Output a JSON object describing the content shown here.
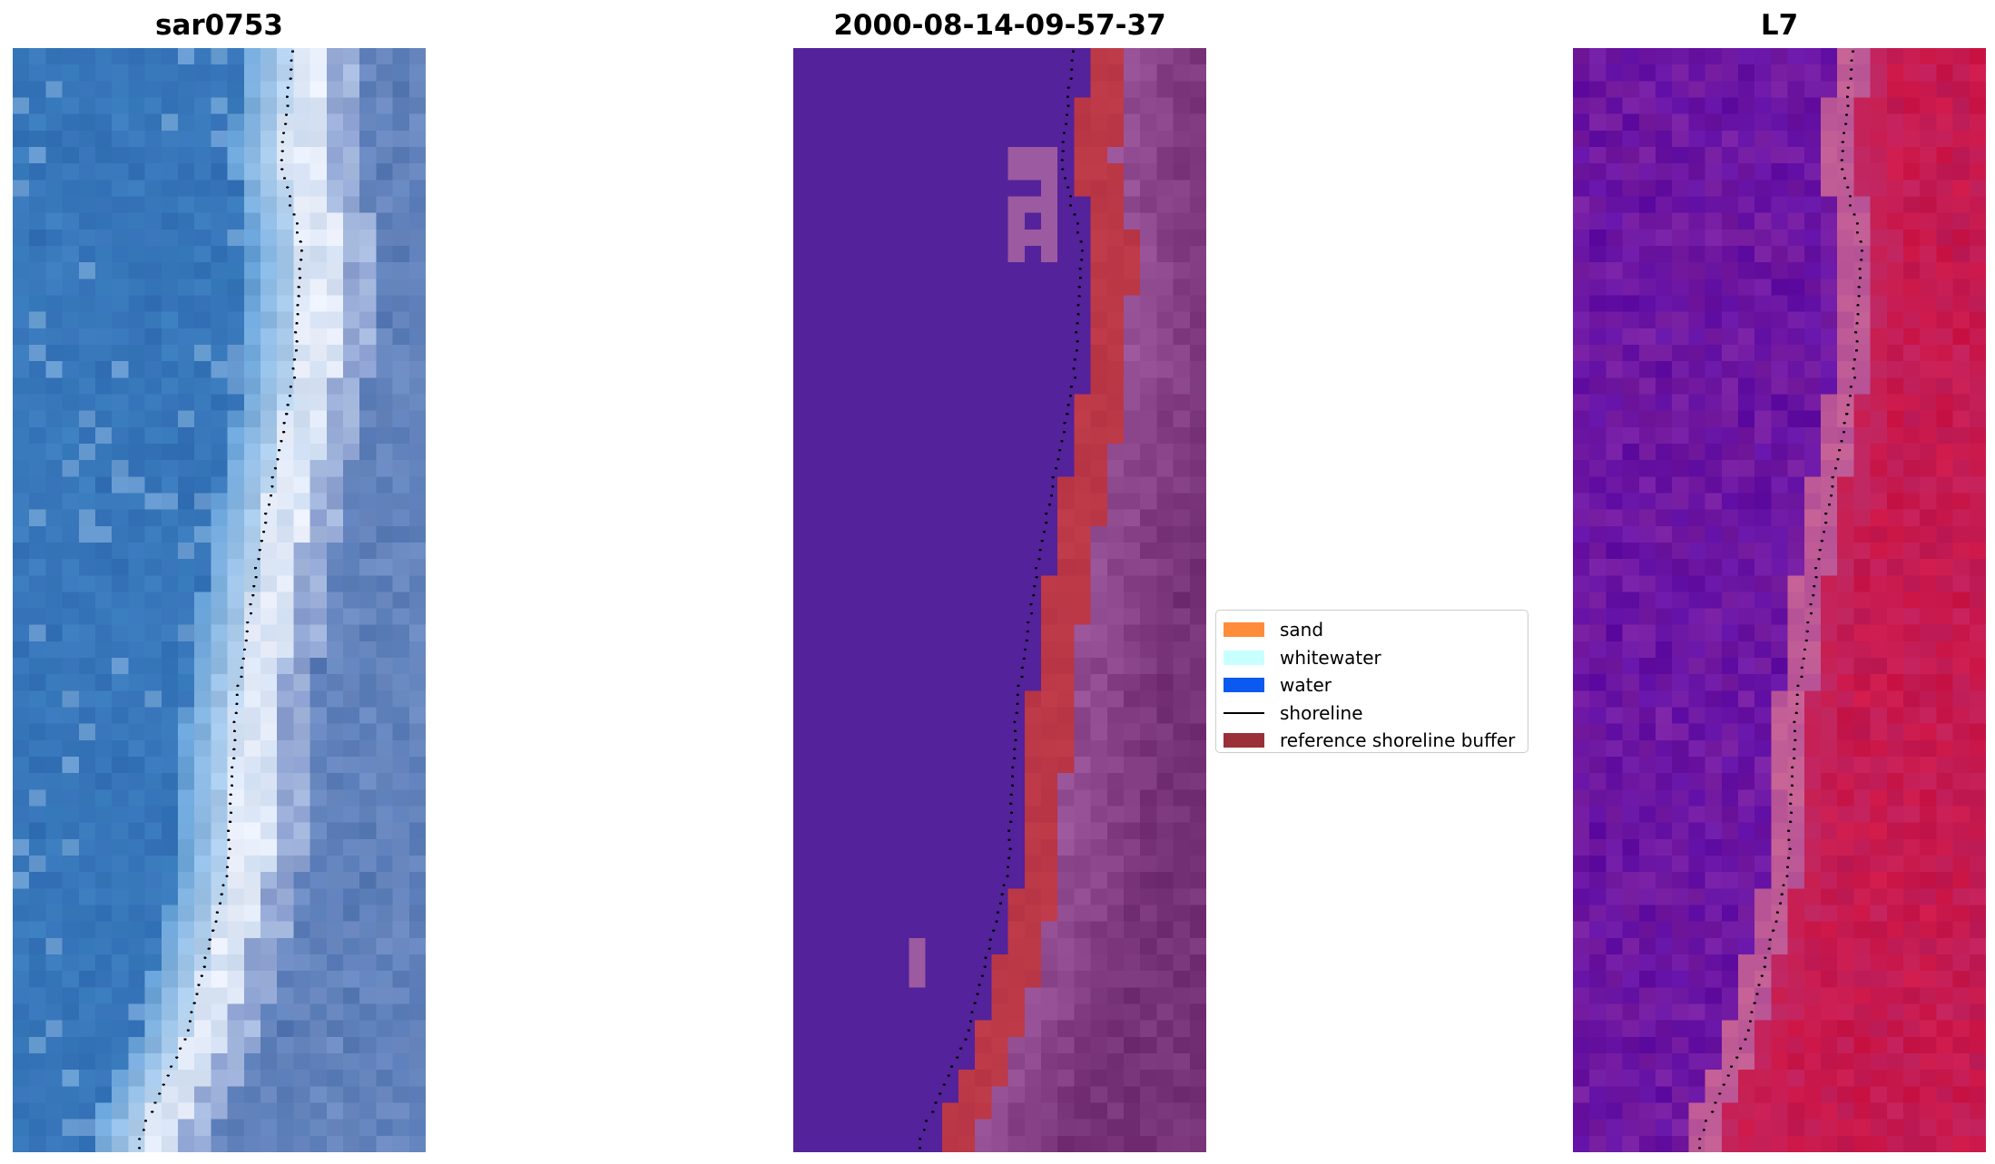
{
  "panels": [
    {
      "id": "rgb",
      "title": "sar0753"
    },
    {
      "id": "class",
      "title": "2000-08-14-09-57-37"
    },
    {
      "id": "mndwi",
      "title": "L7"
    }
  ],
  "legend": {
    "items": [
      {
        "label": "sand",
        "color": "#FF8C3A",
        "kind": "patch"
      },
      {
        "label": "whitewater",
        "color": "#C8FFFF",
        "kind": "patch"
      },
      {
        "label": "water",
        "color": "#0A5AF0",
        "kind": "patch"
      },
      {
        "label": "shoreline",
        "color": "#000000",
        "kind": "line"
      },
      {
        "label": "reference shoreline buffer",
        "color": "#9A3038",
        "kind": "patch"
      }
    ]
  },
  "colors": {
    "classified_water_background": "#54229A",
    "reference_buffer_overlay": "#C0404A",
    "rgb_water": "#3B7DBF",
    "rgb_whitewater": "#EEF4FF",
    "mndwi_water": "#7A1CA0",
    "mndwi_land": "#C8144C",
    "shoreline_points": "#000000"
  }
}
